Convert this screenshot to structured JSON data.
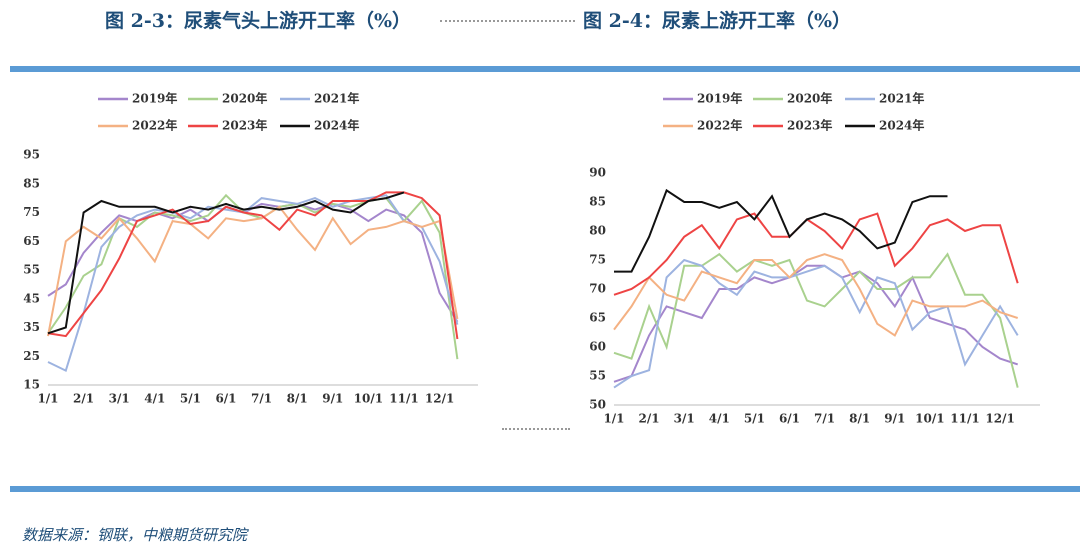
{
  "chart_data": [
    {
      "type": "line",
      "title": "图 2-3：尿素气头上游开工率（%）",
      "categories": [
        "1/1",
        null,
        "2/1",
        null,
        "3/1",
        null,
        "4/1",
        null,
        "5/1",
        null,
        "6/1",
        null,
        "7/1",
        null,
        "8/1",
        null,
        "9/1",
        null,
        "10/1",
        null,
        "11/1",
        null,
        "12/1",
        null
      ],
      "ylim": [
        15,
        95
      ],
      "yticks": [
        15,
        25,
        35,
        45,
        55,
        65,
        75,
        85,
        95
      ],
      "series": [
        {
          "name": "2019年",
          "color": "#a486cc",
          "values": [
            46,
            50,
            61,
            68,
            74,
            72,
            75,
            73,
            76,
            72,
            77,
            75,
            78,
            77,
            78,
            76,
            78,
            76,
            72,
            76,
            74,
            68,
            47,
            37
          ]
        },
        {
          "name": "2020年",
          "color": "#a9d18e",
          "values": [
            33,
            42,
            53,
            57,
            73,
            70,
            75,
            74,
            72,
            74,
            81,
            75,
            73,
            77,
            78,
            75,
            78,
            77,
            79,
            80,
            72,
            79,
            68,
            24
          ]
        },
        {
          "name": "2021年",
          "color": "#9db3e0",
          "values": [
            23,
            20,
            40,
            63,
            70,
            74,
            76,
            75,
            73,
            77,
            76,
            75,
            80,
            79,
            78,
            80,
            77,
            79,
            80,
            81,
            72,
            70,
            58,
            36
          ]
        },
        {
          "name": "2022年",
          "color": "#f4b183",
          "values": [
            32,
            65,
            70,
            66,
            73,
            66,
            58,
            72,
            71,
            66,
            73,
            72,
            73,
            77,
            69,
            62,
            73,
            64,
            69,
            70,
            72,
            70,
            72,
            38
          ]
        },
        {
          "name": "2023年",
          "color": "#ee4444",
          "values": [
            33,
            32,
            40,
            48,
            59,
            72,
            74,
            76,
            71,
            72,
            77,
            75,
            74,
            69,
            76,
            74,
            79,
            79,
            79,
            82,
            82,
            80,
            74,
            31
          ]
        },
        {
          "name": "2024年",
          "color": "#111111",
          "values": [
            33,
            35,
            75,
            79,
            77,
            77,
            77,
            75,
            77,
            76,
            78,
            76,
            77,
            76,
            77,
            79,
            76,
            75,
            79,
            80,
            82,
            null,
            null,
            null
          ]
        }
      ]
    },
    {
      "type": "line",
      "title": "图 2-4：尿素上游开工率（%）",
      "categories": [
        "1/1",
        null,
        "2/1",
        null,
        "3/1",
        null,
        "4/1",
        null,
        "5/1",
        null,
        "6/1",
        null,
        "7/1",
        null,
        "8/1",
        null,
        "9/1",
        null,
        "10/1",
        null,
        "11/1",
        null,
        "12/1",
        null
      ],
      "ylim": [
        50,
        90
      ],
      "yticks": [
        50,
        55,
        60,
        65,
        70,
        75,
        80,
        85,
        90
      ],
      "series": [
        {
          "name": "2019年",
          "color": "#a486cc",
          "values": [
            54,
            55,
            62,
            67,
            66,
            65,
            70,
            70,
            72,
            71,
            72,
            74,
            74,
            72,
            73,
            71,
            67,
            72,
            65,
            64,
            63,
            60,
            58,
            57
          ]
        },
        {
          "name": "2020年",
          "color": "#a9d18e",
          "values": [
            59,
            58,
            67,
            60,
            74,
            74,
            76,
            73,
            75,
            74,
            75,
            68,
            67,
            70,
            73,
            70,
            70,
            72,
            72,
            76,
            69,
            69,
            65,
            53
          ]
        },
        {
          "name": "2021年",
          "color": "#9db3e0",
          "values": [
            53,
            55,
            56,
            72,
            75,
            74,
            71,
            69,
            73,
            72,
            72,
            73,
            74,
            72,
            66,
            72,
            71,
            63,
            66,
            67,
            57,
            62,
            67,
            62
          ]
        },
        {
          "name": "2022年",
          "color": "#f4b183",
          "values": [
            63,
            67,
            72,
            69,
            68,
            73,
            72,
            71,
            75,
            75,
            72,
            75,
            76,
            75,
            70,
            64,
            62,
            68,
            67,
            67,
            67,
            68,
            66,
            65
          ]
        },
        {
          "name": "2023年",
          "color": "#ee4444",
          "values": [
            69,
            70,
            72,
            75,
            79,
            81,
            77,
            82,
            83,
            79,
            79,
            82,
            80,
            77,
            82,
            83,
            74,
            77,
            81,
            82,
            80,
            81,
            81,
            71
          ]
        },
        {
          "name": "2024年",
          "color": "#111111",
          "values": [
            73,
            73,
            79,
            87,
            85,
            85,
            84,
            85,
            82,
            86,
            79,
            82,
            83,
            82,
            80,
            77,
            78,
            85,
            86,
            86,
            null,
            null,
            null,
            null
          ]
        }
      ]
    }
  ],
  "source": "数据来源：钢联，中粮期货研究院"
}
